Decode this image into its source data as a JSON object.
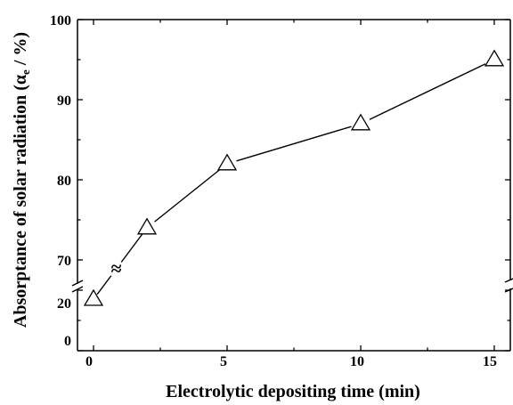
{
  "chart_data": {
    "type": "line",
    "title": "",
    "xlabel": "Electrolytic depositing time (min)",
    "ylabel": {
      "prefix": "Absorptance of solar radiation (",
      "alpha": "α",
      "subscript": "e",
      "suffix": " / %)"
    },
    "x": [
      0,
      2,
      5,
      10,
      15
    ],
    "series": [
      {
        "values": [
          17,
          74,
          82,
          87,
          95
        ]
      }
    ],
    "marker": "open-triangle",
    "line_color": "#000000",
    "xlim": [
      -0.6,
      15.6
    ],
    "x_ticks": [
      "0",
      "5",
      "10",
      "15"
    ],
    "y_axis_broken": true,
    "y_break_marker": "≈",
    "y_lower_segment": {
      "range": [
        0,
        20
      ],
      "ticks": [
        "0",
        "20"
      ]
    },
    "y_upper_segment": {
      "range": [
        67,
        100
      ],
      "ticks": [
        "70",
        "80",
        "90",
        "100"
      ]
    },
    "grid": false,
    "legend": "none"
  }
}
